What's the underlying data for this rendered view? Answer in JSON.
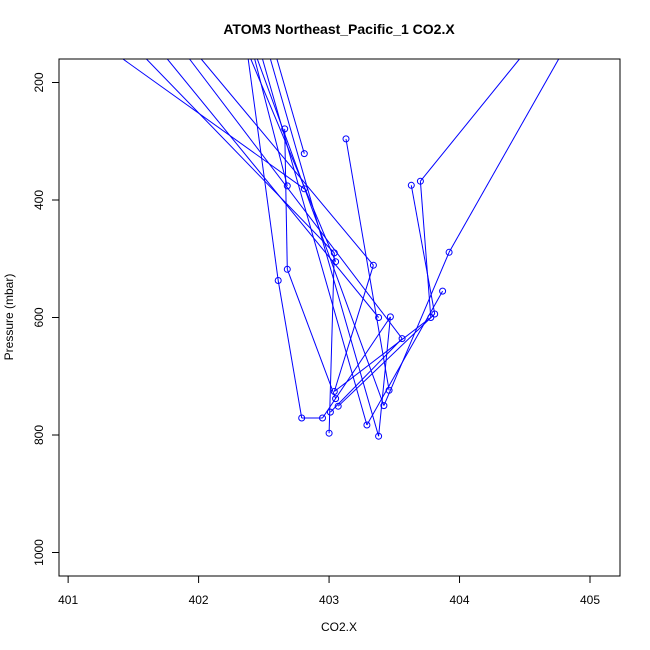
{
  "chart_data": {
    "type": "line",
    "title": "ATOM3 Northeast_Pacific_1 CO2.X",
    "xlabel": "CO2.X",
    "ylabel": "Pressure (mbar)",
    "xlim": [
      400.93,
      405.23
    ],
    "ylim": [
      1040,
      160
    ],
    "y_reversed": true,
    "x_ticks": [
      401,
      402,
      403,
      404,
      405
    ],
    "y_ticks": [
      200,
      400,
      600,
      800,
      1000
    ],
    "grid": false,
    "color": "#0000ff",
    "points": [
      {
        "x": 403.13,
        "y": 296
      },
      {
        "x": 402.81,
        "y": 321
      },
      {
        "x": 402.66,
        "y": 279
      },
      {
        "x": 403.7,
        "y": 368
      },
      {
        "x": 403.63,
        "y": 375
      },
      {
        "x": 402.68,
        "y": 376
      },
      {
        "x": 402.81,
        "y": 381
      },
      {
        "x": 403.92,
        "y": 489
      },
      {
        "x": 403.04,
        "y": 490
      },
      {
        "x": 403.05,
        "y": 505
      },
      {
        "x": 403.34,
        "y": 511
      },
      {
        "x": 402.68,
        "y": 518
      },
      {
        "x": 402.61,
        "y": 537
      },
      {
        "x": 403.87,
        "y": 555
      },
      {
        "x": 403.81,
        "y": 594
      },
      {
        "x": 403.78,
        "y": 600
      },
      {
        "x": 403.38,
        "y": 600
      },
      {
        "x": 403.47,
        "y": 599
      },
      {
        "x": 403.56,
        "y": 636
      },
      {
        "x": 403.04,
        "y": 726
      },
      {
        "x": 403.46,
        "y": 724
      },
      {
        "x": 403.05,
        "y": 738
      },
      {
        "x": 403.07,
        "y": 751
      },
      {
        "x": 403.42,
        "y": 750
      },
      {
        "x": 403.01,
        "y": 761
      },
      {
        "x": 402.95,
        "y": 771
      },
      {
        "x": 402.79,
        "y": 771
      },
      {
        "x": 403.29,
        "y": 783
      },
      {
        "x": 403.0,
        "y": 797
      },
      {
        "x": 403.38,
        "y": 802
      }
    ],
    "segments": [
      {
        "x": [
          401.42,
          402.81
        ],
        "y": [
          160,
          381
        ]
      },
      {
        "x": [
          401.6,
          403.04
        ],
        "y": [
          160,
          490
        ]
      },
      {
        "x": [
          401.76,
          403.38
        ],
        "y": [
          160,
          600
        ]
      },
      {
        "x": [
          401.93,
          403.56
        ],
        "y": [
          160,
          636
        ]
      },
      {
        "x": [
          402.02,
          403.34
        ],
        "y": [
          160,
          511
        ]
      },
      {
        "x": [
          402.38,
          402.61
        ],
        "y": [
          160,
          537
        ]
      },
      {
        "x": [
          402.4,
          403.05
        ],
        "y": [
          160,
          505
        ]
      },
      {
        "x": [
          402.43,
          402.68
        ],
        "y": [
          160,
          376
        ]
      },
      {
        "x": [
          402.45,
          403.42
        ],
        "y": [
          160,
          750
        ]
      },
      {
        "x": [
          402.49,
          403.29
        ],
        "y": [
          160,
          783
        ]
      },
      {
        "x": [
          402.55,
          403.38
        ],
        "y": [
          160,
          802
        ]
      },
      {
        "x": [
          402.6,
          402.81
        ],
        "y": [
          160,
          321
        ]
      },
      {
        "x": [
          404.46,
          403.7
        ],
        "y": [
          160,
          368
        ]
      },
      {
        "x": [
          404.76,
          403.92
        ],
        "y": [
          160,
          489
        ]
      },
      {
        "x": [
          402.66,
          402.68
        ],
        "y": [
          279,
          518
        ]
      },
      {
        "x": [
          402.68,
          403.05
        ],
        "y": [
          518,
          738
        ]
      },
      {
        "x": [
          403.13,
          403.46
        ],
        "y": [
          296,
          724
        ]
      },
      {
        "x": [
          403.34,
          403.04
        ],
        "y": [
          511,
          726
        ]
      },
      {
        "x": [
          402.61,
          402.79
        ],
        "y": [
          537,
          771
        ]
      },
      {
        "x": [
          402.79,
          402.95
        ],
        "y": [
          771,
          771
        ]
      },
      {
        "x": [
          402.95,
          403.47
        ],
        "y": [
          771,
          599
        ]
      },
      {
        "x": [
          403.63,
          403.81
        ],
        "y": [
          375,
          594
        ]
      },
      {
        "x": [
          403.7,
          403.78
        ],
        "y": [
          368,
          600
        ]
      },
      {
        "x": [
          403.78,
          403.04
        ],
        "y": [
          600,
          726
        ]
      },
      {
        "x": [
          403.81,
          403.07
        ],
        "y": [
          594,
          751
        ]
      },
      {
        "x": [
          403.87,
          403.29
        ],
        "y": [
          555,
          783
        ]
      },
      {
        "x": [
          403.92,
          403.42
        ],
        "y": [
          489,
          750
        ]
      },
      {
        "x": [
          403.56,
          403.01
        ],
        "y": [
          636,
          761
        ]
      },
      {
        "x": [
          403.04,
          403.0
        ],
        "y": [
          490,
          797
        ]
      },
      {
        "x": [
          403.47,
          403.38
        ],
        "y": [
          599,
          802
        ]
      }
    ]
  }
}
